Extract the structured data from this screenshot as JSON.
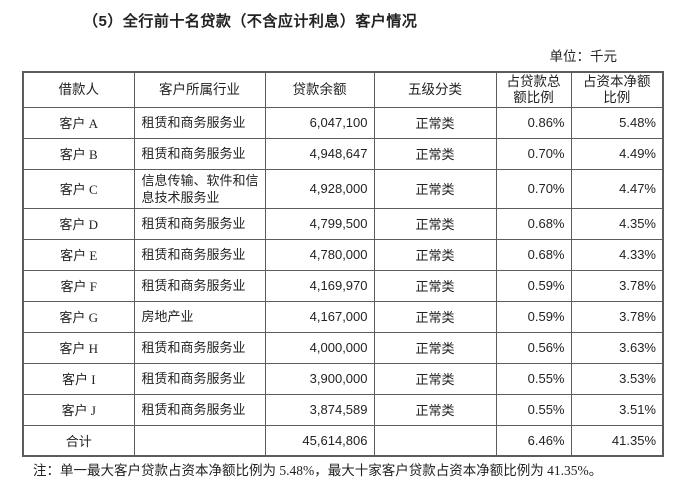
{
  "page": {
    "title": "（5）全行前十名贷款（不含应计利息）客户情况",
    "unit_label": "单位：千元",
    "note": "注：单一最大客户贷款占资本净额比例为 5.48%，最大十家客户贷款占资本净额比例为 41.35%。"
  },
  "table": {
    "headers": [
      {
        "line1": "借款人",
        "line2": ""
      },
      {
        "line1": "客户所属行业",
        "line2": ""
      },
      {
        "line1": "贷款余额",
        "line2": ""
      },
      {
        "line1": "五级分类",
        "line2": ""
      },
      {
        "line1": "占贷款总",
        "line2": "额比例"
      },
      {
        "line1": "占资本净额",
        "line2": "比例"
      }
    ],
    "rows": [
      {
        "borrower": "客户 A",
        "industry": "租赁和商务服务业",
        "balance": "6,047,100",
        "classification": "正常类",
        "loan_pct": "0.86%",
        "capital_pct": "5.48%"
      },
      {
        "borrower": "客户 B",
        "industry": "租赁和商务服务业",
        "balance": "4,948,647",
        "classification": "正常类",
        "loan_pct": "0.70%",
        "capital_pct": "4.49%"
      },
      {
        "borrower": "客户 C",
        "industry": "信息传输、软件和信息技术服务业",
        "balance": "4,928,000",
        "classification": "正常类",
        "loan_pct": "0.70%",
        "capital_pct": "4.47%"
      },
      {
        "borrower": "客户 D",
        "industry": "租赁和商务服务业",
        "balance": "4,799,500",
        "classification": "正常类",
        "loan_pct": "0.68%",
        "capital_pct": "4.35%"
      },
      {
        "borrower": "客户 E",
        "industry": "租赁和商务服务业",
        "balance": "4,780,000",
        "classification": "正常类",
        "loan_pct": "0.68%",
        "capital_pct": "4.33%"
      },
      {
        "borrower": "客户 F",
        "industry": "租赁和商务服务业",
        "balance": "4,169,970",
        "classification": "正常类",
        "loan_pct": "0.59%",
        "capital_pct": "3.78%"
      },
      {
        "borrower": "客户 G",
        "industry": "房地产业",
        "balance": "4,167,000",
        "classification": "正常类",
        "loan_pct": "0.59%",
        "capital_pct": "3.78%"
      },
      {
        "borrower": "客户 H",
        "industry": "租赁和商务服务业",
        "balance": "4,000,000",
        "classification": "正常类",
        "loan_pct": "0.56%",
        "capital_pct": "3.63%"
      },
      {
        "borrower": "客户 I",
        "industry": "租赁和商务服务业",
        "balance": "3,900,000",
        "classification": "正常类",
        "loan_pct": "0.55%",
        "capital_pct": "3.53%"
      },
      {
        "borrower": "客户 J",
        "industry": "租赁和商务服务业",
        "balance": "3,874,589",
        "classification": "正常类",
        "loan_pct": "0.55%",
        "capital_pct": "3.51%"
      },
      {
        "borrower": "合计",
        "industry": "",
        "balance": "45,614,806",
        "classification": "",
        "loan_pct": "6.46%",
        "capital_pct": "41.35%"
      }
    ]
  },
  "colors": {
    "text": "#222222",
    "border": "#5c5c5c",
    "background": "#ffffff"
  }
}
